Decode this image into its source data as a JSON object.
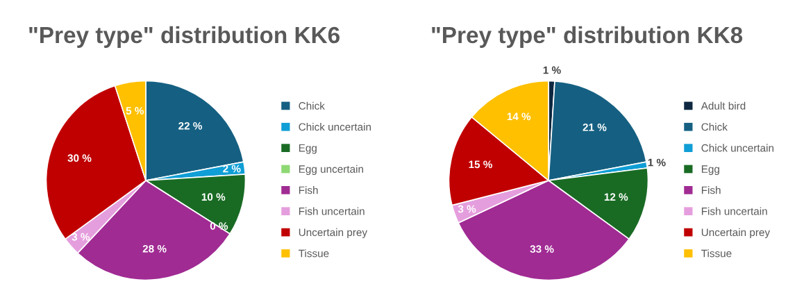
{
  "chart_data": [
    {
      "type": "pie",
      "title": "\"Prey type\" distribution KK6",
      "legend": "right",
      "categories": [
        "Chick",
        "Chick uncertain",
        "Egg",
        "Egg uncertain",
        "Fish",
        "Fish uncertain",
        "Uncertain prey",
        "Tissue"
      ],
      "values": [
        22,
        2,
        10,
        0,
        28,
        3,
        30,
        5
      ],
      "value_labels": [
        "22 %",
        "2 %",
        "10 %",
        "0 %",
        "28 %",
        "3 %",
        "30 %",
        "5 %"
      ],
      "colors": [
        "#156082",
        "#0f9ed5",
        "#196b24",
        "#8ed973",
        "#a02b93",
        "#e59edd",
        "#c00000",
        "#ffc000"
      ]
    },
    {
      "type": "pie",
      "title": "\"Prey type\" distribution KK8",
      "legend": "right",
      "categories": [
        "Adult bird",
        "Chick",
        "Chick uncertain",
        "Egg",
        "Fish",
        "Fish uncertain",
        "Uncertain prey",
        "Tissue"
      ],
      "values": [
        1,
        21,
        1,
        12,
        33,
        3,
        15,
        14
      ],
      "value_labels": [
        "1 %",
        "21 %",
        "1 %",
        "12 %",
        "33 %",
        "3 %",
        "15 %",
        "14 %"
      ],
      "colors": [
        "#0e2841",
        "#156082",
        "#0f9ed5",
        "#196b24",
        "#a02b93",
        "#e59edd",
        "#c00000",
        "#ffc000"
      ]
    }
  ]
}
